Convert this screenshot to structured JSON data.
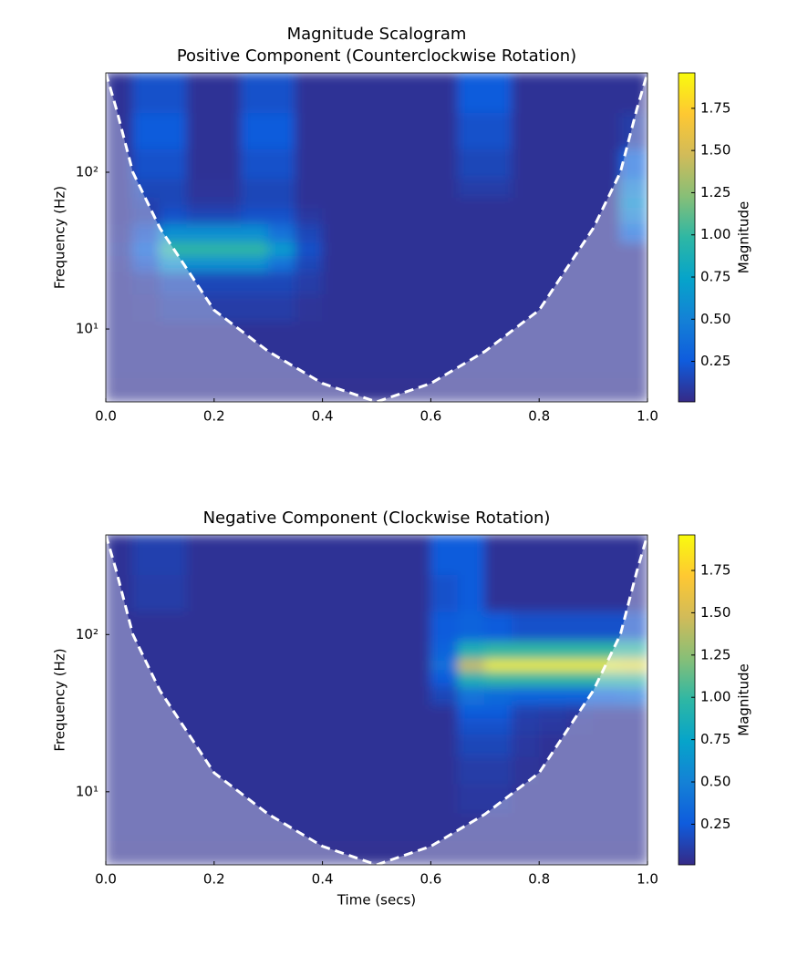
{
  "title": "Magnitude Scalogram",
  "chart_data": [
    {
      "type": "heatmap",
      "title": "Positive Component (Counterclockwise Rotation)",
      "ylabel": "Frequency (Hz)",
      "log_y": true,
      "xlim": [
        0,
        1
      ],
      "xticks": [
        {
          "value": 0,
          "label": "0.0"
        },
        0.2,
        0.4,
        0.6,
        0.8,
        {
          "value": 1,
          "label": "1.0"
        }
      ],
      "ylim": [
        3.43,
        430
      ],
      "yticks": [
        {
          "value": 10,
          "label": "10¹"
        },
        {
          "value": 100,
          "label": "10²"
        }
      ],
      "x": [
        0.025,
        0.075,
        0.125,
        0.175,
        0.225,
        0.275,
        0.325,
        0.375,
        0.425,
        0.475,
        0.525,
        0.575,
        0.625,
        0.675,
        0.725,
        0.775,
        0.825,
        0.875,
        0.925,
        0.975
      ],
      "y": [
        4,
        6,
        9,
        14,
        20,
        27,
        32,
        40,
        55,
        64,
        75,
        110,
        180,
        320
      ],
      "values": [
        [
          0.04,
          0.04,
          0.04,
          0.04,
          0.04,
          0.04,
          0.04,
          0.04,
          0.04,
          0.04,
          0.04,
          0.04,
          0.04,
          0.04,
          0.04,
          0.04,
          0.04,
          0.04,
          0.04,
          0.04
        ],
        [
          0.05,
          0.05,
          0.05,
          0.05,
          0.05,
          0.05,
          0.05,
          0.05,
          0.05,
          0.05,
          0.05,
          0.05,
          0.05,
          0.05,
          0.05,
          0.05,
          0.05,
          0.05,
          0.05,
          0.05
        ],
        [
          0.05,
          0.05,
          0.05,
          0.05,
          0.05,
          0.05,
          0.05,
          0.05,
          0.05,
          0.05,
          0.05,
          0.05,
          0.05,
          0.05,
          0.05,
          0.05,
          0.05,
          0.05,
          0.05,
          0.05
        ],
        [
          0.05,
          0.06,
          0.1,
          0.1,
          0.1,
          0.1,
          0.1,
          0.06,
          0.05,
          0.05,
          0.05,
          0.05,
          0.05,
          0.05,
          0.05,
          0.05,
          0.05,
          0.05,
          0.05,
          0.05
        ],
        [
          0.05,
          0.08,
          0.15,
          0.15,
          0.15,
          0.15,
          0.15,
          0.1,
          0.05,
          0.05,
          0.05,
          0.05,
          0.05,
          0.05,
          0.05,
          0.05,
          0.05,
          0.05,
          0.05,
          0.05
        ],
        [
          0.06,
          0.2,
          0.6,
          0.6,
          0.6,
          0.6,
          0.4,
          0.15,
          0.05,
          0.05,
          0.05,
          0.05,
          0.05,
          0.05,
          0.05,
          0.05,
          0.05,
          0.05,
          0.05,
          0.05
        ],
        [
          0.08,
          0.3,
          1.0,
          1.0,
          1.0,
          1.0,
          0.7,
          0.2,
          0.05,
          0.05,
          0.05,
          0.05,
          0.05,
          0.05,
          0.05,
          0.05,
          0.05,
          0.05,
          0.05,
          0.05
        ],
        [
          0.06,
          0.2,
          0.6,
          0.6,
          0.6,
          0.6,
          0.4,
          0.15,
          0.05,
          0.05,
          0.05,
          0.05,
          0.05,
          0.05,
          0.05,
          0.05,
          0.05,
          0.05,
          0.05,
          0.3
        ],
        [
          0.05,
          0.1,
          0.2,
          0.15,
          0.15,
          0.2,
          0.2,
          0.08,
          0.05,
          0.05,
          0.05,
          0.05,
          0.05,
          0.05,
          0.05,
          0.05,
          0.05,
          0.05,
          0.05,
          0.5
        ],
        [
          0.05,
          0.12,
          0.15,
          0.08,
          0.08,
          0.15,
          0.15,
          0.05,
          0.05,
          0.05,
          0.05,
          0.05,
          0.05,
          0.05,
          0.05,
          0.05,
          0.05,
          0.05,
          0.05,
          0.6
        ],
        [
          0.05,
          0.15,
          0.15,
          0.06,
          0.06,
          0.15,
          0.15,
          0.05,
          0.05,
          0.05,
          0.05,
          0.05,
          0.05,
          0.1,
          0.1,
          0.05,
          0.05,
          0.05,
          0.05,
          0.5
        ],
        [
          0.05,
          0.2,
          0.2,
          0.05,
          0.05,
          0.2,
          0.2,
          0.05,
          0.05,
          0.05,
          0.05,
          0.05,
          0.05,
          0.15,
          0.15,
          0.05,
          0.05,
          0.05,
          0.05,
          0.3
        ],
        [
          0.05,
          0.25,
          0.25,
          0.05,
          0.05,
          0.25,
          0.25,
          0.05,
          0.05,
          0.05,
          0.05,
          0.05,
          0.05,
          0.2,
          0.2,
          0.05,
          0.05,
          0.05,
          0.05,
          0.1
        ],
        [
          0.05,
          0.2,
          0.2,
          0.05,
          0.05,
          0.2,
          0.2,
          0.05,
          0.05,
          0.05,
          0.05,
          0.05,
          0.05,
          0.25,
          0.25,
          0.05,
          0.05,
          0.05,
          0.05,
          0.05
        ]
      ],
      "colormap": [
        "#352a87",
        "#0f5cdd",
        "#1481d6",
        "#06a4ca",
        "#2eb7a4",
        "#87bf77",
        "#d1bb59",
        "#fec832",
        "#f9fb0e"
      ],
      "colorbar": {
        "label": "Magnitude",
        "lim": [
          0.01,
          1.96
        ],
        "ticks": [
          0.25,
          {
            "value": 0.5,
            "label": "0.50"
          },
          0.75,
          {
            "value": 1,
            "label": "1.00"
          },
          1.25,
          {
            "value": 1.5,
            "label": "1.50"
          },
          1.75
        ]
      },
      "coi": {
        "color": "#ffffff",
        "shade": "#ffffff",
        "x": [
          0,
          0.01,
          0.02,
          0.05,
          0.1,
          0.2,
          0.3,
          0.4,
          0.5,
          0.6,
          0.7,
          0.8,
          0.9,
          0.95,
          0.98,
          0.99,
          1
        ],
        "values": [
          430,
          329,
          250,
          100,
          44,
          13.2,
          7.2,
          4.5,
          3.43,
          4.5,
          7.2,
          13.2,
          44,
          100,
          250,
          329,
          430
        ]
      }
    },
    {
      "type": "heatmap",
      "title": "Negative Component (Clockwise Rotation)",
      "xlabel": "Time (secs)",
      "ylabel": "Frequency (Hz)",
      "log_y": true,
      "xlim": [
        0,
        1
      ],
      "xticks": [
        {
          "value": 0,
          "label": "0.0"
        },
        0.2,
        0.4,
        0.6,
        0.8,
        {
          "value": 1,
          "label": "1.0"
        }
      ],
      "ylim": [
        3.43,
        430
      ],
      "yticks": [
        {
          "value": 10,
          "label": "10¹"
        },
        {
          "value": 100,
          "label": "10²"
        }
      ],
      "x": [
        0.025,
        0.075,
        0.125,
        0.175,
        0.225,
        0.275,
        0.325,
        0.375,
        0.425,
        0.475,
        0.525,
        0.575,
        0.625,
        0.675,
        0.725,
        0.775,
        0.825,
        0.875,
        0.925,
        0.975
      ],
      "y": [
        4,
        6,
        9,
        14,
        20,
        27,
        32,
        40,
        55,
        64,
        75,
        110,
        180,
        320
      ],
      "values": [
        [
          0.04,
          0.04,
          0.04,
          0.04,
          0.04,
          0.04,
          0.04,
          0.04,
          0.04,
          0.04,
          0.04,
          0.04,
          0.04,
          0.04,
          0.04,
          0.04,
          0.04,
          0.04,
          0.04,
          0.04
        ],
        [
          0.05,
          0.05,
          0.05,
          0.05,
          0.05,
          0.05,
          0.05,
          0.05,
          0.05,
          0.05,
          0.05,
          0.05,
          0.05,
          0.05,
          0.05,
          0.05,
          0.05,
          0.05,
          0.05,
          0.05
        ],
        [
          0.05,
          0.05,
          0.05,
          0.05,
          0.05,
          0.05,
          0.05,
          0.05,
          0.05,
          0.05,
          0.05,
          0.05,
          0.05,
          0.08,
          0.08,
          0.05,
          0.05,
          0.05,
          0.05,
          0.05
        ],
        [
          0.05,
          0.05,
          0.05,
          0.05,
          0.05,
          0.05,
          0.05,
          0.05,
          0.05,
          0.05,
          0.05,
          0.05,
          0.05,
          0.1,
          0.1,
          0.06,
          0.05,
          0.05,
          0.05,
          0.05
        ],
        [
          0.05,
          0.05,
          0.05,
          0.05,
          0.05,
          0.05,
          0.05,
          0.05,
          0.05,
          0.05,
          0.05,
          0.05,
          0.05,
          0.15,
          0.15,
          0.08,
          0.05,
          0.05,
          0.05,
          0.05
        ],
        [
          0.05,
          0.05,
          0.05,
          0.05,
          0.05,
          0.05,
          0.05,
          0.05,
          0.05,
          0.05,
          0.05,
          0.05,
          0.05,
          0.2,
          0.2,
          0.1,
          0.08,
          0.06,
          0.05,
          0.05
        ],
        [
          0.05,
          0.05,
          0.05,
          0.05,
          0.05,
          0.05,
          0.05,
          0.05,
          0.05,
          0.05,
          0.05,
          0.05,
          0.05,
          0.25,
          0.25,
          0.12,
          0.1,
          0.08,
          0.06,
          0.06
        ],
        [
          0.05,
          0.05,
          0.05,
          0.05,
          0.05,
          0.05,
          0.05,
          0.05,
          0.05,
          0.05,
          0.05,
          0.05,
          0.15,
          0.4,
          0.35,
          0.3,
          0.3,
          0.3,
          0.3,
          0.35
        ],
        [
          0.05,
          0.05,
          0.05,
          0.05,
          0.05,
          0.05,
          0.05,
          0.05,
          0.05,
          0.05,
          0.05,
          0.05,
          0.25,
          0.9,
          1.0,
          1.0,
          1.0,
          1.0,
          1.0,
          1.0
        ],
        [
          0.05,
          0.05,
          0.05,
          0.05,
          0.05,
          0.05,
          0.05,
          0.05,
          0.05,
          0.05,
          0.05,
          0.05,
          0.4,
          1.5,
          1.9,
          1.9,
          1.9,
          1.9,
          1.9,
          1.85
        ],
        [
          0.05,
          0.05,
          0.05,
          0.05,
          0.05,
          0.05,
          0.05,
          0.05,
          0.05,
          0.05,
          0.05,
          0.05,
          0.3,
          0.9,
          1.0,
          1.0,
          1.0,
          1.0,
          1.0,
          1.0
        ],
        [
          0.05,
          0.05,
          0.05,
          0.05,
          0.05,
          0.05,
          0.05,
          0.05,
          0.05,
          0.05,
          0.05,
          0.05,
          0.25,
          0.3,
          0.25,
          0.2,
          0.2,
          0.2,
          0.2,
          0.2
        ],
        [
          0.05,
          0.1,
          0.1,
          0.05,
          0.05,
          0.05,
          0.05,
          0.05,
          0.05,
          0.05,
          0.05,
          0.05,
          0.2,
          0.25,
          0.05,
          0.05,
          0.05,
          0.05,
          0.05,
          0.05
        ],
        [
          0.05,
          0.12,
          0.12,
          0.05,
          0.05,
          0.05,
          0.05,
          0.05,
          0.05,
          0.05,
          0.05,
          0.05,
          0.25,
          0.25,
          0.05,
          0.05,
          0.05,
          0.05,
          0.05,
          0.05
        ]
      ],
      "colormap": [
        "#352a87",
        "#0f5cdd",
        "#1481d6",
        "#06a4ca",
        "#2eb7a4",
        "#87bf77",
        "#d1bb59",
        "#fec832",
        "#f9fb0e"
      ],
      "colorbar": {
        "label": "Magnitude",
        "lim": [
          0.01,
          1.96
        ],
        "ticks": [
          0.25,
          {
            "value": 0.5,
            "label": "0.50"
          },
          0.75,
          {
            "value": 1,
            "label": "1.00"
          },
          1.25,
          {
            "value": 1.5,
            "label": "1.50"
          },
          1.75
        ]
      },
      "coi": {
        "color": "#ffffff",
        "shade": "#ffffff",
        "x": [
          0,
          0.01,
          0.02,
          0.05,
          0.1,
          0.2,
          0.3,
          0.4,
          0.5,
          0.6,
          0.7,
          0.8,
          0.9,
          0.95,
          0.98,
          0.99,
          1
        ],
        "values": [
          430,
          329,
          250,
          100,
          44,
          13.2,
          7.2,
          4.5,
          3.43,
          4.5,
          7.2,
          13.2,
          44,
          100,
          250,
          329,
          430
        ]
      }
    }
  ]
}
